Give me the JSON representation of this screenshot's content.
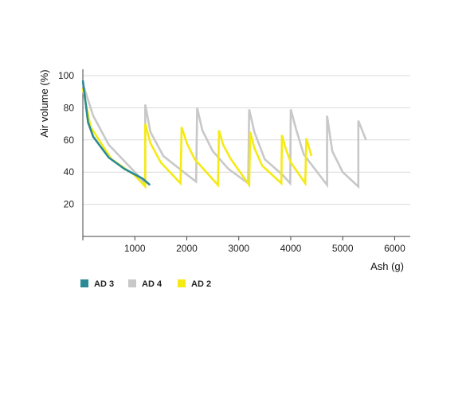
{
  "chart_data": {
    "type": "line",
    "title": "",
    "xlabel": "Ash (g)",
    "ylabel": "Air volume (%)",
    "xlim": [
      0,
      6300
    ],
    "ylim": [
      0,
      100
    ],
    "x_ticks": [
      1000,
      2000,
      3000,
      4000,
      5000,
      6000
    ],
    "x_tick_labels": [
      "1000",
      "2000",
      "3000",
      "4000",
      "5000",
      "6000"
    ],
    "y_ticks": [
      20,
      40,
      60,
      80,
      100
    ],
    "y_tick_labels": [
      "20",
      "40",
      "60",
      "80",
      "100"
    ],
    "grid": "horizontal",
    "legend_position": "bottom-left",
    "series": [
      {
        "name": "AD 3",
        "color": "#2a8a96",
        "x": [
          0,
          100,
          200,
          500,
          800,
          1150,
          1290
        ],
        "y": [
          97,
          71,
          62,
          49,
          42,
          36,
          32
        ]
      },
      {
        "name": "AD 4",
        "color": "#c8c8c8",
        "x": [
          0,
          200,
          500,
          1000,
          1200,
          1200,
          1300,
          1550,
          1900,
          2180,
          2200,
          2300,
          2500,
          2800,
          3180,
          3200,
          3300,
          3500,
          3850,
          3990,
          4000,
          4100,
          4250,
          4700,
          4700,
          4800,
          5000,
          5300,
          5300,
          5450
        ],
        "y": [
          95,
          75,
          57,
          40,
          33,
          82,
          65,
          50,
          41,
          34,
          80,
          66,
          53,
          42,
          33,
          79,
          65,
          48,
          38,
          33,
          79,
          67,
          51,
          32,
          75,
          53,
          40,
          31,
          72,
          60
        ]
      },
      {
        "name": "AD 2",
        "color": "#f5ea14",
        "x": [
          0,
          150,
          550,
          1000,
          1200,
          1200,
          1300,
          1500,
          1880,
          1900,
          2000,
          2150,
          2600,
          2620,
          2700,
          2850,
          3200,
          3220,
          3300,
          3450,
          3820,
          3830,
          3900,
          4000,
          4280,
          4300,
          4400
        ],
        "y": [
          92,
          68,
          48,
          38,
          31,
          70,
          58,
          46,
          33,
          68,
          58,
          48,
          32,
          66,
          57,
          48,
          32,
          65,
          55,
          44,
          33,
          63,
          55,
          46,
          33,
          61,
          50
        ]
      }
    ]
  }
}
